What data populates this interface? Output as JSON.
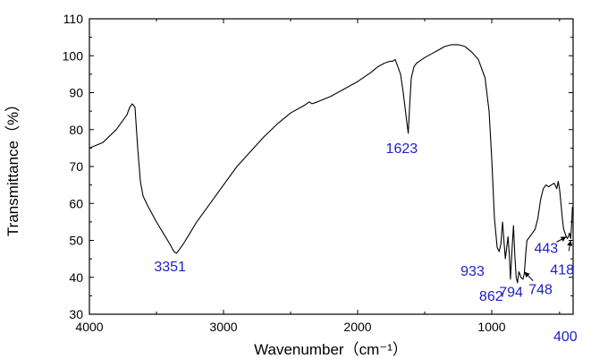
{
  "chart_data": {
    "type": "line",
    "title": "",
    "xlabel": "Wavenumber（cm⁻¹）",
    "ylabel": "Transmittance（%）",
    "xlim": [
      4000,
      400
    ],
    "ylim": [
      30,
      110
    ],
    "x_reversed": true,
    "grid": false,
    "legend": "none",
    "line_color": "#000000",
    "label_color": "#2020c8",
    "x_ticks": [
      "4000",
      "3000",
      "2000",
      "1000",
      "400"
    ],
    "y_ticks": [
      "30",
      "40",
      "50",
      "60",
      "70",
      "80",
      "90",
      "100",
      "110"
    ],
    "series": [
      {
        "x": [
          4000,
          3900,
          3800,
          3750,
          3720,
          3700,
          3680,
          3660,
          3640,
          3620,
          3600,
          3560,
          3500,
          3450,
          3400,
          3370,
          3351,
          3330,
          3300,
          3250,
          3200,
          3100,
          3000,
          2900,
          2800,
          2700,
          2600,
          2500,
          2400,
          2360,
          2340,
          2300,
          2200,
          2100,
          2000,
          1900,
          1850,
          1800,
          1760,
          1740,
          1720,
          1700,
          1680,
          1660,
          1640,
          1623,
          1610,
          1600,
          1580,
          1560,
          1540,
          1500,
          1450,
          1400,
          1350,
          1300,
          1250,
          1200,
          1150,
          1100,
          1050,
          1020,
          1000,
          980,
          960,
          945,
          933,
          920,
          910,
          900,
          890,
          880,
          870,
          862,
          850,
          840,
          830,
          820,
          810,
          800,
          794,
          785,
          770,
          760,
          748,
          740,
          720,
          700,
          680,
          660,
          640,
          620,
          600,
          580,
          560,
          540,
          520,
          510,
          500,
          490,
          480,
          470,
          460,
          450,
          443,
          435,
          428,
          418,
          410,
          405,
          400
        ],
        "y": [
          75,
          76.5,
          80,
          82.5,
          84,
          86,
          87,
          86,
          75,
          66,
          62,
          59,
          55,
          52,
          49,
          47,
          46.5,
          47.5,
          49,
          52,
          55,
          60,
          65,
          70,
          74,
          78,
          81.5,
          84.5,
          86.5,
          87.5,
          87,
          87.5,
          89,
          91,
          93,
          95.5,
          97,
          98,
          98.5,
          98.5,
          99,
          97,
          95,
          90,
          84,
          79,
          88,
          94,
          97,
          98,
          98.5,
          99.5,
          100.5,
          101.5,
          102.5,
          103,
          103,
          102.5,
          101,
          99,
          94,
          85,
          72,
          56,
          48,
          47,
          49,
          55,
          50,
          45,
          48,
          51,
          46,
          39.5,
          48,
          54,
          46,
          40,
          38.5,
          41.5,
          41,
          40,
          39.5,
          41,
          47,
          50,
          51,
          52,
          53,
          56,
          61,
          64,
          65,
          64.5,
          65,
          65.5,
          64,
          66,
          64,
          60,
          56,
          53,
          52,
          51,
          50.5,
          51,
          52,
          50.5,
          55,
          59,
          58
        ]
      }
    ],
    "annotations": [
      {
        "text": "3351",
        "x": 3351,
        "y": 46.5
      },
      {
        "text": "1623",
        "x": 1623,
        "y": 79
      },
      {
        "text": "933",
        "x": 933,
        "y": 47
      },
      {
        "text": "862",
        "x": 862,
        "y": 39.5
      },
      {
        "text": "794",
        "x": 794,
        "y": 41
      },
      {
        "text": "748",
        "x": 748,
        "y": 41
      },
      {
        "text": "443",
        "x": 443,
        "y": 51
      },
      {
        "text": "418",
        "x": 418,
        "y": 50.5
      },
      {
        "text": "400",
        "x": 400,
        "y": 29
      }
    ]
  }
}
